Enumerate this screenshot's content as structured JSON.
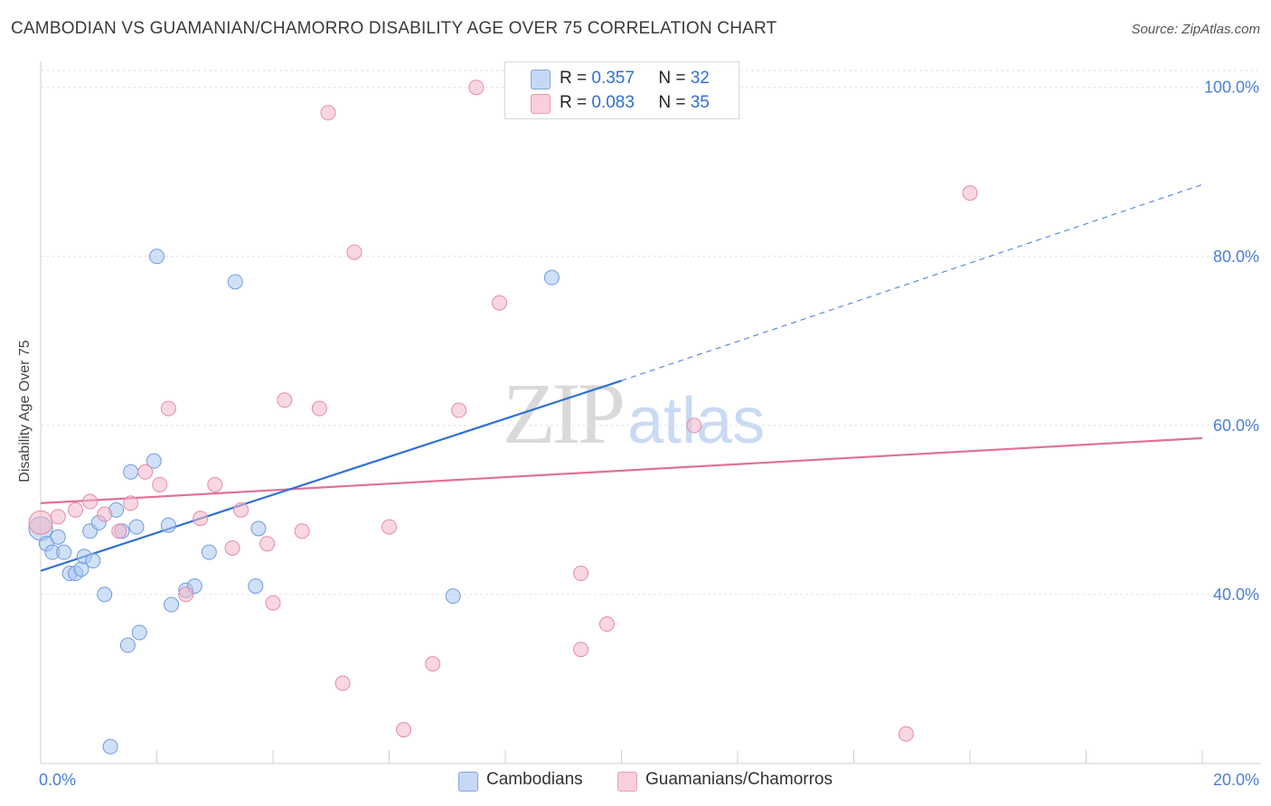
{
  "title": "CAMBODIAN VS GUAMANIAN/CHAMORRO DISABILITY AGE OVER 75 CORRELATION CHART",
  "source": "Source: ZipAtlas.com",
  "watermark": {
    "zip": "ZIP",
    "atlas": "atlas"
  },
  "legend": {
    "rows": [
      {
        "r_label": "R =",
        "r_value": "0.357",
        "n_label": "N =",
        "n_value": "32",
        "color": "#a9c6f0"
      },
      {
        "r_label": "R =",
        "r_value": "0.083",
        "n_label": "N =",
        "n_value": "35",
        "color": "#f4b6c9"
      }
    ]
  },
  "bottom_legend": [
    "Cambodians",
    "Guamanians/Chamorros"
  ],
  "chart_data": {
    "type": "scatter",
    "ylabel": "Disability Age Over 75",
    "xlim": [
      0,
      20
    ],
    "ylim": [
      20,
      102
    ],
    "x_tick_labels": [
      "0.0%",
      "20.0%"
    ],
    "y_ticks": [
      40,
      60,
      80,
      100
    ],
    "y_tick_labels": [
      "40.0%",
      "60.0%",
      "80.0%",
      "100.0%"
    ],
    "grid": true,
    "series": [
      {
        "name": "Cambodians",
        "color": "#a9c6f0",
        "stroke": "#6d9be0",
        "line_color": "#2f6fd6",
        "points": [
          [
            0.0,
            47.8
          ],
          [
            0.1,
            46.0
          ],
          [
            0.2,
            45.0
          ],
          [
            0.3,
            46.8
          ],
          [
            0.4,
            45.0
          ],
          [
            0.5,
            42.5
          ],
          [
            0.6,
            42.5
          ],
          [
            0.7,
            43.0
          ],
          [
            0.75,
            44.5
          ],
          [
            0.85,
            47.5
          ],
          [
            0.9,
            44.0
          ],
          [
            1.0,
            48.5
          ],
          [
            1.1,
            40.0
          ],
          [
            1.3,
            50.0
          ],
          [
            1.4,
            47.5
          ],
          [
            1.5,
            34.0
          ],
          [
            1.55,
            54.5
          ],
          [
            1.65,
            48.0
          ],
          [
            1.7,
            35.5
          ],
          [
            1.95,
            55.8
          ],
          [
            2.0,
            80.0
          ],
          [
            2.2,
            48.2
          ],
          [
            2.25,
            38.8
          ],
          [
            2.5,
            40.5
          ],
          [
            2.65,
            41.0
          ],
          [
            2.9,
            45.0
          ],
          [
            3.35,
            77.0
          ],
          [
            3.7,
            41.0
          ],
          [
            3.75,
            47.8
          ],
          [
            7.1,
            39.8
          ],
          [
            8.8,
            77.5
          ],
          [
            1.2,
            22.0
          ]
        ],
        "trend": {
          "x0": 0.0,
          "y0": 42.8,
          "x1": 10.0,
          "y1": 65.3,
          "dash_to_x": 20.0,
          "dash_to_y": 88.5
        }
      },
      {
        "name": "Guamanians/Chamorros",
        "color": "#f4b6c9",
        "stroke": "#e58aa7",
        "line_color": "#e0709a",
        "points": [
          [
            0.0,
            48.5
          ],
          [
            0.3,
            49.2
          ],
          [
            0.6,
            50.0
          ],
          [
            0.85,
            51.0
          ],
          [
            1.1,
            49.5
          ],
          [
            1.35,
            47.5
          ],
          [
            1.55,
            50.8
          ],
          [
            1.8,
            54.5
          ],
          [
            2.05,
            53.0
          ],
          [
            2.2,
            62.0
          ],
          [
            2.5,
            40.0
          ],
          [
            2.75,
            49.0
          ],
          [
            3.0,
            53.0
          ],
          [
            3.3,
            45.5
          ],
          [
            3.45,
            50.0
          ],
          [
            3.9,
            46.0
          ],
          [
            4.0,
            39.0
          ],
          [
            4.2,
            63.0
          ],
          [
            4.5,
            47.5
          ],
          [
            4.8,
            62.0
          ],
          [
            4.95,
            97.0
          ],
          [
            5.2,
            29.5
          ],
          [
            5.4,
            80.5
          ],
          [
            6.0,
            48.0
          ],
          [
            6.25,
            24.0
          ],
          [
            6.75,
            31.8
          ],
          [
            7.2,
            61.8
          ],
          [
            7.5,
            100.0
          ],
          [
            7.9,
            74.5
          ],
          [
            9.3,
            42.5
          ],
          [
            9.3,
            33.5
          ],
          [
            9.75,
            36.5
          ],
          [
            11.25,
            60.0
          ],
          [
            14.9,
            23.5
          ],
          [
            16.0,
            87.5
          ]
        ],
        "trend": {
          "x0": 0.0,
          "y0": 50.8,
          "x1": 20.0,
          "y1": 58.5
        }
      }
    ]
  }
}
